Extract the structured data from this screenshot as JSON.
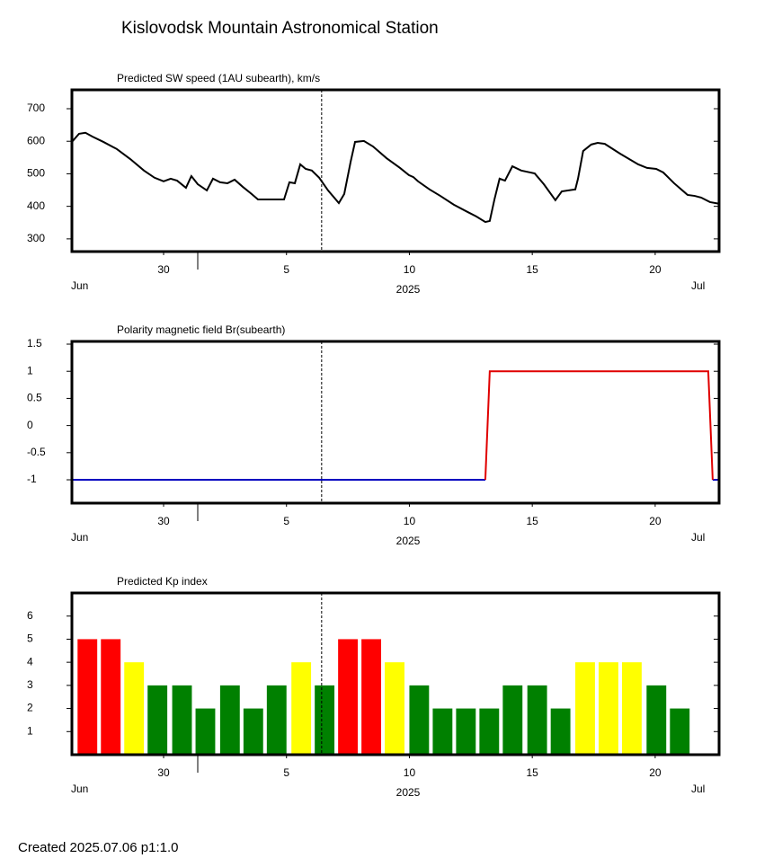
{
  "title": "Kislovodsk Mountain Astronomical Station",
  "footer": "Created  2025.07.06    p1:1.0",
  "chart_data": [
    {
      "type": "line",
      "title": "Predicted SW speed (1AU subearth), km/s",
      "x": [
        -3.73,
        -3.44,
        -3.18,
        -2.89,
        -2.45,
        -1.9,
        -1.35,
        -0.8,
        -0.37,
        0,
        0.29,
        0.55,
        0.91,
        1.13,
        1.39,
        1.76,
        2.01,
        2.3,
        2.6,
        2.89,
        3.22,
        3.58,
        3.84,
        4.31,
        4.9,
        5.12,
        5.34,
        5.56,
        5.78,
        6.03,
        6.33,
        6.69,
        7.13,
        7.35,
        7.61,
        7.79,
        8.15,
        8.52,
        9.07,
        9.62,
        9.98,
        10.16,
        10.35,
        10.82,
        11.26,
        11.81,
        12.36,
        12.72,
        13.09,
        13.27,
        13.46,
        13.67,
        13.89,
        14.19,
        14.55,
        15.1,
        15.47,
        15.94,
        16.2,
        16.75,
        16.86,
        17.07,
        17.4,
        17.66,
        17.95,
        18.57,
        19.31,
        19.67,
        20.04,
        20.33,
        20.77,
        21.32,
        21.61,
        21.87,
        22.23,
        22.6
      ],
      "series": [
        {
          "color": "#000000",
          "values": [
            598,
            623,
            626,
            614,
            598,
            576,
            545,
            510,
            488,
            477,
            485,
            479,
            457,
            493,
            468,
            449,
            485,
            474,
            471,
            482,
            460,
            438,
            421,
            421,
            421,
            474,
            471,
            529,
            515,
            510,
            488,
            449,
            410,
            438,
            537,
            598,
            601,
            584,
            548,
            518,
            496,
            490,
            477,
            452,
            432,
            405,
            383,
            369,
            352,
            355,
            421,
            485,
            479,
            523,
            510,
            501,
            468,
            419,
            446,
            452,
            485,
            570,
            590,
            595,
            592,
            562,
            529,
            518,
            515,
            504,
            471,
            435,
            432,
            427,
            413,
            408
          ]
        }
      ],
      "xlim": [
        -3.73,
        22.6
      ],
      "ylim": [
        261,
        758
      ],
      "xticks": [
        {
          "value": 0,
          "label": "30"
        },
        5,
        10,
        15,
        20
      ],
      "yticks": [
        300,
        400,
        500,
        600,
        700
      ],
      "xlabel": "2025",
      "month_labels": [
        "Jun",
        "Jul"
      ],
      "vline_x": 6.43
    },
    {
      "type": "line",
      "title": "Polarity magnetic field  Br(subearth)",
      "x": [
        -3.73,
        13.09,
        13.27,
        22.16,
        22.34,
        22.6
      ],
      "series": [
        {
          "color": "#0000c0",
          "values": [
            -1,
            -1,
            null,
            null,
            -1,
            -1
          ]
        },
        {
          "color": "#e00000",
          "values": [
            null,
            -1,
            1,
            1,
            -1,
            null
          ]
        }
      ],
      "xlim": [
        -3.73,
        22.6
      ],
      "ylim": [
        -1.43,
        1.55
      ],
      "xticks": [
        {
          "value": 0,
          "label": "30"
        },
        5,
        10,
        15,
        20
      ],
      "yticks": [
        1.5,
        1,
        0.5,
        0,
        -0.5,
        -1
      ],
      "xlabel": "2025",
      "month_labels": [
        "Jun",
        "Jul"
      ],
      "vline_x": 6.43
    },
    {
      "type": "bar",
      "title": "Predicted Kp index",
      "x": [
        -3.1,
        -2.15,
        -1.2,
        -0.25,
        0.75,
        1.7,
        2.7,
        3.65,
        4.6,
        5.6,
        6.55,
        7.5,
        8.45,
        9.4,
        10.4,
        11.35,
        12.3,
        13.25,
        14.2,
        15.2,
        16.15,
        17.15,
        18.1,
        19.05,
        20.05,
        21.0
      ],
      "values": [
        5,
        5,
        4,
        3,
        3,
        2,
        3,
        2,
        3,
        4,
        3,
        5,
        5,
        4,
        3,
        2,
        2,
        2,
        3,
        3,
        2,
        4,
        4,
        4,
        3,
        2
      ],
      "colors": [
        "#ff0000",
        "#ff0000",
        "#ffff00",
        "#008000",
        "#008000",
        "#008000",
        "#008000",
        "#008000",
        "#008000",
        "#ffff00",
        "#008000",
        "#ff0000",
        "#ff0000",
        "#ffff00",
        "#008000",
        "#008000",
        "#008000",
        "#008000",
        "#008000",
        "#008000",
        "#008000",
        "#ffff00",
        "#ffff00",
        "#ffff00",
        "#008000",
        "#008000"
      ],
      "xlim": [
        -3.73,
        22.6
      ],
      "ylim": [
        0,
        7
      ],
      "xticks": [
        {
          "value": 0,
          "label": "30"
        },
        5,
        10,
        15,
        20
      ],
      "yticks": [
        1,
        2,
        3,
        4,
        5,
        6
      ],
      "xlabel": "2025",
      "month_labels": [
        "Jun",
        "Jul"
      ],
      "vline_x": 6.43
    }
  ]
}
